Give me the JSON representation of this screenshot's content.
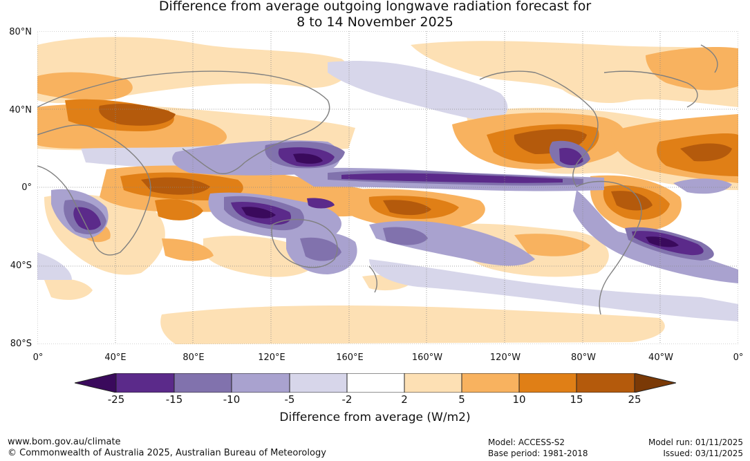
{
  "title": {
    "line1": "Difference from average outgoing longwave radiation forecast for",
    "line2": "8 to 14 November 2025"
  },
  "map": {
    "lat_labels": [
      "80°N",
      "40°N",
      "0°",
      "40°S",
      "80°S"
    ],
    "lon_labels": [
      "0°",
      "40°E",
      "80°E",
      "120°E",
      "160°E",
      "160°W",
      "120°W",
      "80°W",
      "40°W",
      "0°"
    ],
    "colors": {
      "neg25": "#3a0a5c",
      "neg15": "#5b2a8a",
      "neg10": "#8172ad",
      "neg5": "#a9a2cf",
      "neg2": "#d7d6ea",
      "zero": "#ffffff",
      "pos2": "#fde0b4",
      "pos5": "#f8b25f",
      "pos10": "#e07f16",
      "pos15": "#b45a0c",
      "pos25": "#7a3906",
      "coast": "#808080"
    }
  },
  "colorbar": {
    "ticks": [
      "-25",
      "-15",
      "-10",
      "-5",
      "-2",
      "2",
      "5",
      "10",
      "15",
      "25"
    ],
    "label": "Difference from average (W/m2)"
  },
  "footer": {
    "website": "www.bom.gov.au/climate",
    "copyright": "© Commonwealth of Australia 2025, Australian Bureau of Meteorology",
    "model": "Model: ACCESS-S2",
    "base_period": "Base period: 1981-2018",
    "model_run": "Model run: 01/11/2025",
    "issued": "Issued: 03/11/2025"
  }
}
